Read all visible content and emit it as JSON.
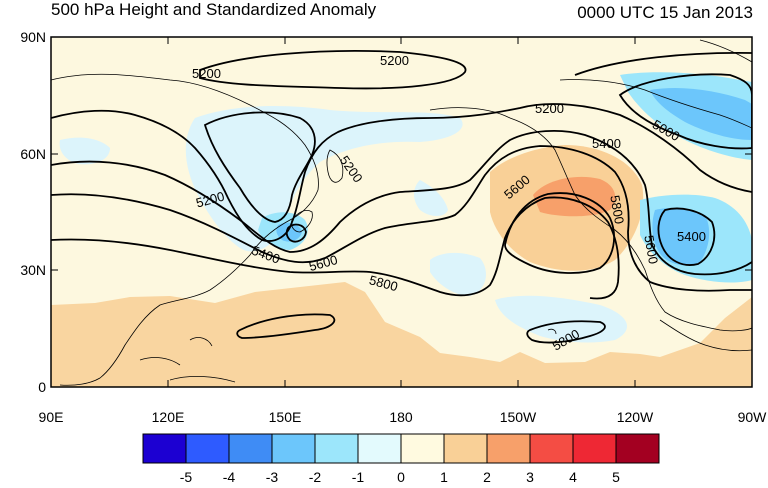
{
  "title": "500 hPa Height and Standardized Anomaly",
  "timestamp": "0000 UTC 15 Jan 2013",
  "map": {
    "longitude_labels": [
      "90E",
      "120E",
      "150E",
      "180",
      "150W",
      "120W",
      "90W"
    ],
    "latitude_labels": [
      "90N",
      "60N",
      "30N",
      "0"
    ],
    "height_contour_labels": [
      "5200",
      "5200",
      "5200",
      "5200",
      "5200",
      "5000",
      "5400",
      "5600",
      "5800",
      "5400",
      "5600",
      "5800",
      "5800",
      "5400",
      "5600"
    ]
  },
  "colorbar": {
    "tick_labels": [
      "-5",
      "-4",
      "-3",
      "-2",
      "-1",
      "0",
      "1",
      "2",
      "3",
      "4",
      "5"
    ],
    "colors": [
      "#1c00d2",
      "#2e5bff",
      "#3f8cf5",
      "#6cc6fb",
      "#9ce6fb",
      "#e3fafd",
      "#fffae0",
      "#f9d097",
      "#f7a06a",
      "#f44d44",
      "#ee2834",
      "#a30021"
    ]
  }
}
